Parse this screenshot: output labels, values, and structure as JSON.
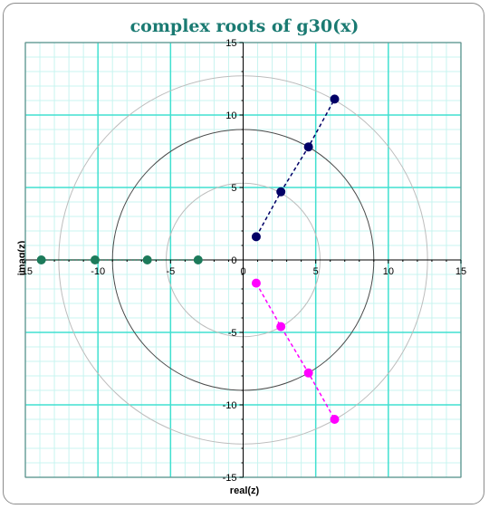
{
  "chart_data": {
    "type": "scatter",
    "title": "complex roots of g30(x)",
    "xlabel": "real(z)",
    "ylabel": "imag(z)",
    "xlim": [
      -15,
      15
    ],
    "ylim": [
      -15,
      15
    ],
    "xticks": [
      -15,
      -10,
      -5,
      0,
      5,
      10,
      15
    ],
    "yticks": [
      -15,
      -10,
      -5,
      0,
      5,
      10,
      15
    ],
    "grid": true,
    "circles": [
      {
        "radius": 5.3,
        "color": "#bdbdbd"
      },
      {
        "radius": 9.0,
        "color": "#4a4a4a"
      },
      {
        "radius": 12.7,
        "color": "#bdbdbd"
      }
    ],
    "series": [
      {
        "color": "#1c7a5a",
        "line": "dotted",
        "points": [
          [
            -13.9,
            0
          ],
          [
            -10.2,
            0
          ],
          [
            -6.6,
            0
          ],
          [
            -3.1,
            0
          ]
        ]
      },
      {
        "color": "#000066",
        "line": "dashed",
        "points": [
          [
            0.9,
            1.6
          ],
          [
            2.6,
            4.7
          ],
          [
            4.5,
            7.8
          ],
          [
            6.3,
            11.1
          ]
        ]
      },
      {
        "color": "#ff00ff",
        "line": "dashed",
        "points": [
          [
            0.9,
            -1.6
          ],
          [
            2.6,
            -4.6
          ],
          [
            4.5,
            -7.8
          ],
          [
            6.3,
            -11.0
          ]
        ]
      }
    ]
  },
  "colors": {
    "major_grid": "#40e0d0",
    "minor_grid": "#c8f4f0",
    "plot_border": "#808080"
  }
}
